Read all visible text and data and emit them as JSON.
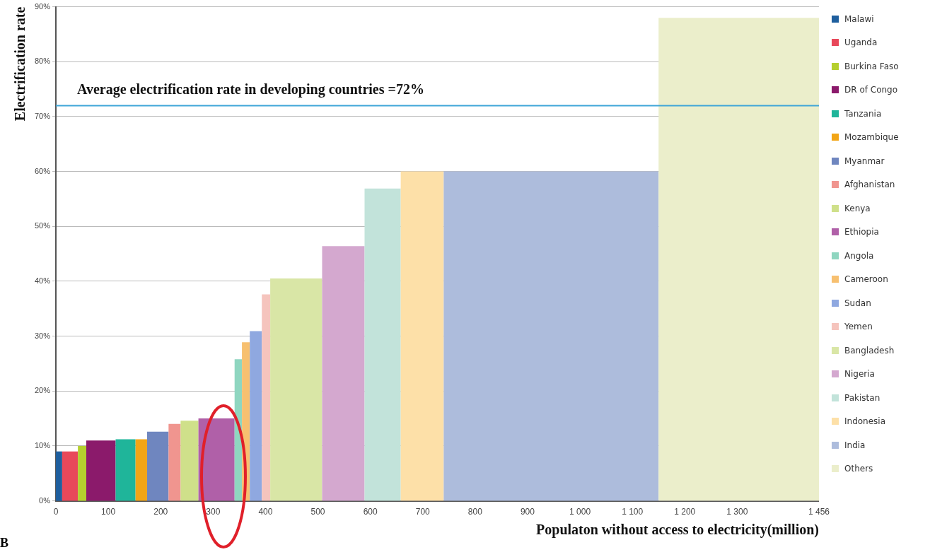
{
  "chart_data": {
    "type": "histogram",
    "xlabel": "Populaton without access to electricity(million)",
    "ylabel": "Electrification rate",
    "bins": [
      0,
      12,
      42,
      58,
      114,
      152,
      174,
      215,
      238,
      272,
      341,
      355,
      370,
      393,
      409,
      508,
      589,
      658,
      740,
      1150,
      1456
    ],
    "series": [
      {
        "name": "Malawi",
        "color": "#1f5f9e",
        "values": [
          9,
          null,
          null,
          null,
          null,
          null,
          null,
          null,
          null,
          null,
          null,
          null,
          null,
          null,
          null,
          null,
          null,
          null,
          null,
          null
        ]
      },
      {
        "name": "Uganda",
        "color": "#e8485a",
        "values": [
          null,
          9,
          null,
          null,
          null,
          null,
          null,
          null,
          null,
          null,
          null,
          null,
          null,
          null,
          null,
          null,
          null,
          null,
          null,
          null
        ]
      },
      {
        "name": "Burkina Faso",
        "color": "#b5cf2e",
        "values": [
          null,
          null,
          10,
          null,
          null,
          null,
          null,
          null,
          null,
          null,
          null,
          null,
          null,
          null,
          null,
          null,
          null,
          null,
          null,
          null
        ]
      },
      {
        "name": "DR of Congo",
        "color": "#8b1a6b",
        "values": [
          null,
          null,
          null,
          11,
          null,
          null,
          null,
          null,
          null,
          null,
          null,
          null,
          null,
          null,
          null,
          null,
          null,
          null,
          null,
          null
        ]
      },
      {
        "name": "Tanzania",
        "color": "#1fb59a",
        "values": [
          null,
          null,
          null,
          null,
          11.2,
          null,
          null,
          null,
          null,
          null,
          null,
          null,
          null,
          null,
          null,
          null,
          null,
          null,
          null,
          null
        ]
      },
      {
        "name": "Mozambique",
        "color": "#f2a516",
        "values": [
          null,
          null,
          null,
          null,
          null,
          11.2,
          null,
          null,
          null,
          null,
          null,
          null,
          null,
          null,
          null,
          null,
          null,
          null,
          null,
          null
        ]
      },
      {
        "name": "Myanmar",
        "color": "#6f86bf",
        "values": [
          null,
          null,
          null,
          null,
          null,
          null,
          12.6,
          null,
          null,
          null,
          null,
          null,
          null,
          null,
          null,
          null,
          null,
          null,
          null,
          null
        ]
      },
      {
        "name": "Afghanistan",
        "color": "#f0958f",
        "values": [
          null,
          null,
          null,
          null,
          null,
          null,
          null,
          14,
          null,
          null,
          null,
          null,
          null,
          null,
          null,
          null,
          null,
          null,
          null,
          null
        ]
      },
      {
        "name": "Kenya",
        "color": "#cfe08a",
        "values": [
          null,
          null,
          null,
          null,
          null,
          null,
          null,
          null,
          14.6,
          null,
          null,
          null,
          null,
          null,
          null,
          null,
          null,
          null,
          null,
          null
        ]
      },
      {
        "name": "Ethiopia",
        "color": "#b060a8",
        "values": [
          null,
          null,
          null,
          null,
          null,
          null,
          null,
          null,
          null,
          15,
          null,
          null,
          null,
          null,
          null,
          null,
          null,
          null,
          null,
          null
        ]
      },
      {
        "name": "Angola",
        "color": "#8fd6c0",
        "values": [
          null,
          null,
          null,
          null,
          null,
          null,
          null,
          null,
          null,
          null,
          25.8,
          null,
          null,
          null,
          null,
          null,
          null,
          null,
          null,
          null
        ]
      },
      {
        "name": "Cameroon",
        "color": "#f7c070",
        "values": [
          null,
          null,
          null,
          null,
          null,
          null,
          null,
          null,
          null,
          null,
          null,
          28.9,
          null,
          null,
          null,
          null,
          null,
          null,
          null,
          null
        ]
      },
      {
        "name": "Sudan",
        "color": "#8fa8e0",
        "values": [
          null,
          null,
          null,
          null,
          null,
          null,
          null,
          null,
          null,
          null,
          null,
          null,
          30.9,
          null,
          null,
          null,
          null,
          null,
          null,
          null
        ]
      },
      {
        "name": "Yemen",
        "color": "#f5c4bd",
        "values": [
          null,
          null,
          null,
          null,
          null,
          null,
          null,
          null,
          null,
          null,
          null,
          null,
          null,
          37.6,
          null,
          null,
          null,
          null,
          null,
          null
        ]
      },
      {
        "name": "Bangladesh",
        "color": "#d9e6a6",
        "values": [
          null,
          null,
          null,
          null,
          null,
          null,
          null,
          null,
          null,
          null,
          null,
          null,
          null,
          null,
          40.5,
          null,
          null,
          null,
          null,
          null
        ]
      },
      {
        "name": "Nigeria",
        "color": "#d4a8cf",
        "values": [
          null,
          null,
          null,
          null,
          null,
          null,
          null,
          null,
          null,
          null,
          null,
          null,
          null,
          null,
          null,
          46.4,
          null,
          null,
          null,
          null
        ]
      },
      {
        "name": "Pakistan",
        "color": "#c2e3da",
        "values": [
          null,
          null,
          null,
          null,
          null,
          null,
          null,
          null,
          null,
          null,
          null,
          null,
          null,
          null,
          null,
          null,
          56.9,
          null,
          null,
          null
        ]
      },
      {
        "name": "Indonesia",
        "color": "#fde0a8",
        "values": [
          null,
          null,
          null,
          null,
          null,
          null,
          null,
          null,
          null,
          null,
          null,
          null,
          null,
          null,
          null,
          null,
          null,
          60,
          null,
          null
        ]
      },
      {
        "name": "India",
        "color": "#adbcdc",
        "values": [
          null,
          null,
          null,
          null,
          null,
          null,
          null,
          null,
          null,
          null,
          null,
          null,
          null,
          null,
          null,
          null,
          null,
          null,
          60,
          null
        ]
      },
      {
        "name": "Others",
        "color": "#ebeecb",
        "values": [
          null,
          null,
          null,
          null,
          null,
          null,
          null,
          null,
          null,
          null,
          null,
          null,
          null,
          null,
          null,
          null,
          null,
          null,
          null,
          88
        ]
      }
    ],
    "xlim": [
      0,
      1456
    ],
    "xticks": [
      0,
      100,
      200,
      300,
      400,
      500,
      600,
      700,
      800,
      900,
      {
        "value": 1000,
        "label": "1 000"
      },
      {
        "value": 1100,
        "label": "1 100"
      },
      {
        "value": 1200,
        "label": "1 200"
      },
      {
        "value": 1300,
        "label": "1 300"
      },
      {
        "value": 1456,
        "label": "1 456"
      }
    ],
    "ylim": [
      0,
      90
    ],
    "yticks": [
      {
        "value": 0,
        "label": "0%"
      },
      {
        "value": 10,
        "label": "10%"
      },
      {
        "value": 20,
        "label": "20%"
      },
      {
        "value": 30,
        "label": "30%"
      },
      {
        "value": 40,
        "label": "40%"
      },
      {
        "value": 50,
        "label": "50%"
      },
      {
        "value": 60,
        "label": "60%"
      },
      {
        "value": 70,
        "label": "70%"
      },
      {
        "value": 80,
        "label": "80%"
      },
      {
        "value": 90,
        "label": "90%"
      }
    ],
    "grid": "y",
    "legend": "right",
    "ref_lines": [
      {
        "axis": "y",
        "value": 72,
        "label": "Average electrification rate in developing countries =72%",
        "color": "#3fa6d8"
      }
    ],
    "annotations": [
      "B"
    ]
  }
}
